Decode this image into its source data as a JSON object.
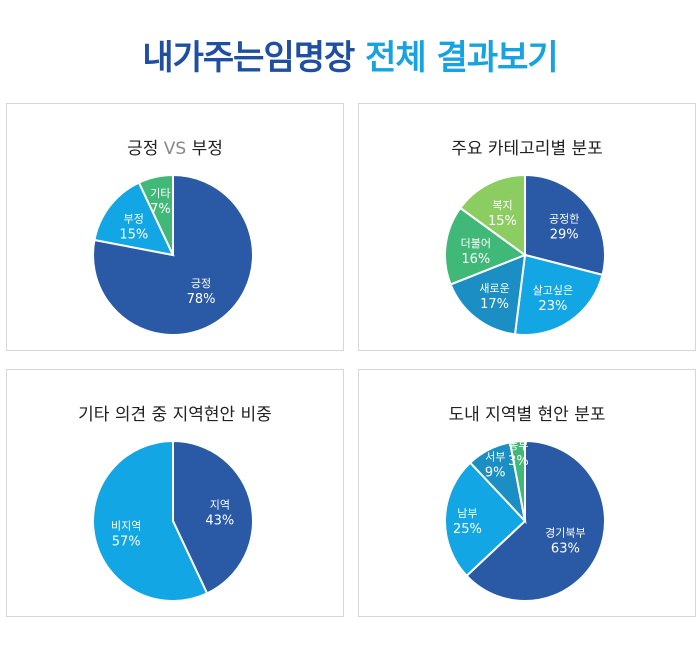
{
  "title": {
    "part1": "내가주는임명장",
    "part2": "전체 결과보기"
  },
  "colors": {
    "title_dark": "#1f4fa0",
    "title_accent": "#16a3e0"
  },
  "chart_data": [
    {
      "type": "pie",
      "title_parts": [
        "긍정 ",
        "VS",
        " 부정"
      ],
      "slices": [
        {
          "label": "긍정",
          "value": 78,
          "text": "78%",
          "color": "#2a5aa5"
        },
        {
          "label": "부정",
          "value": 15,
          "text": "15%",
          "color": "#13a6e4"
        },
        {
          "label": "기타",
          "value": 7,
          "text": "7%",
          "color": "#40b877"
        }
      ]
    },
    {
      "type": "pie",
      "title": "주요 카테고리별 분포",
      "slices": [
        {
          "label": "공정한",
          "value": 29,
          "text": "29%",
          "color": "#2a5aa5"
        },
        {
          "label": "살고싶은",
          "value": 23,
          "text": "23%",
          "color": "#13a6e4"
        },
        {
          "label": "새로운",
          "value": 17,
          "text": "17%",
          "color": "#1b8fc3"
        },
        {
          "label": "더불어",
          "value": 16,
          "text": "16%",
          "color": "#40b877"
        },
        {
          "label": "복지",
          "value": 15,
          "text": "15%",
          "color": "#8ccd62"
        }
      ]
    },
    {
      "type": "pie",
      "title": "기타 의견 중 지역현안 비중",
      "slices": [
        {
          "label": "지역",
          "value": 43,
          "text": "43%",
          "color": "#2a5aa5"
        },
        {
          "label": "비지역",
          "value": 57,
          "text": "57%",
          "color": "#13a6e4"
        }
      ]
    },
    {
      "type": "pie",
      "title": "도내 지역별 현안 분포",
      "slices": [
        {
          "label": "경기북부",
          "value": 63,
          "text": "63%",
          "color": "#2a5aa5"
        },
        {
          "label": "남부",
          "value": 25,
          "text": "25%",
          "color": "#13a6e4"
        },
        {
          "label": "서부",
          "value": 9,
          "text": "9%",
          "color": "#1b8fc3"
        },
        {
          "label": "동부",
          "value": 3,
          "text": "3%",
          "color": "#40b877"
        }
      ]
    }
  ]
}
